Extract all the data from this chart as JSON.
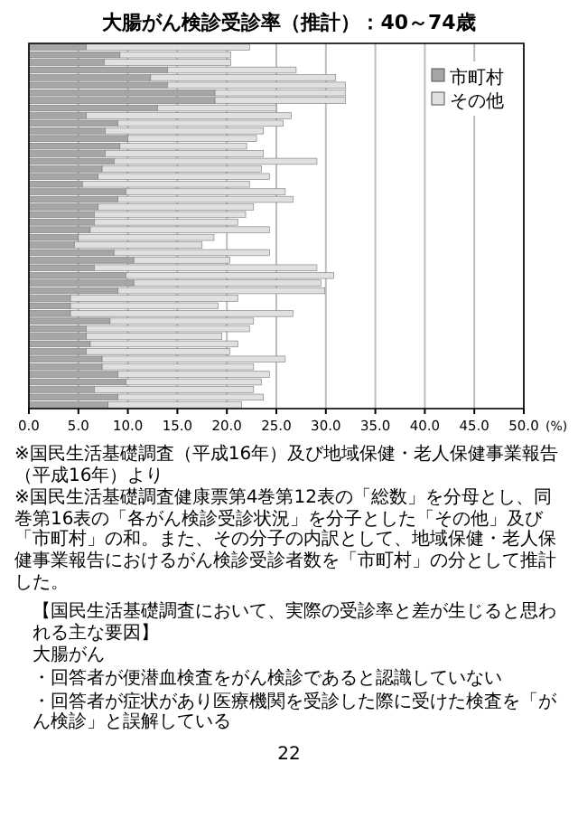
{
  "chart_data": {
    "type": "bar",
    "orientation": "horizontal",
    "stacked": true,
    "title": "大腸がん検診受診率（推計）：40～74歳",
    "xlabel": "(%)",
    "categories": [
      null,
      null,
      null,
      null,
      null,
      null,
      null,
      null,
      null,
      null,
      null,
      null,
      null,
      null,
      null,
      null,
      null,
      null,
      null,
      null,
      null,
      null,
      null,
      null,
      null,
      null,
      null,
      null,
      null,
      null,
      null,
      null,
      null,
      null,
      null,
      null,
      null,
      null,
      null,
      null,
      null,
      null,
      null,
      null,
      null,
      null,
      null,
      null
    ],
    "series": [
      {
        "name": "市町村",
        "color": "#a6a6a6",
        "values": [
          5.8,
          9.2,
          7.6,
          14,
          12.3,
          14,
          18.8,
          18.8,
          13,
          5.8,
          9,
          7.7,
          10,
          9.2,
          7.7,
          8.6,
          7.4,
          7,
          5.4,
          9.8,
          9,
          7,
          6.6,
          6.6,
          6.2,
          5,
          4.6,
          8.6,
          10.6,
          6.6,
          9.8,
          10.6,
          9,
          4.2,
          4.2,
          4.2,
          8.2,
          5.8,
          5.8,
          6.2,
          5.8,
          7.4,
          7.4,
          9,
          9.8,
          6.6,
          9,
          8
        ]
      },
      {
        "name": "その他",
        "color": "#e0e0e0",
        "values": [
          16.5,
          11.2,
          12.8,
          13,
          18.7,
          18,
          13.2,
          13.2,
          12,
          20.7,
          16.7,
          16,
          13,
          12.8,
          16,
          20.5,
          16.1,
          17.3,
          16.9,
          16.1,
          17.7,
          15.7,
          15.3,
          14.5,
          18.1,
          13.7,
          12.9,
          15.7,
          9.7,
          22.5,
          21,
          18.9,
          20.9,
          16.9,
          14.9,
          22.5,
          14.5,
          16.5,
          13.7,
          14.9,
          14.5,
          18.5,
          15.3,
          15.3,
          13.7,
          16.1,
          14.7,
          13.5
        ]
      }
    ],
    "xlim": [
      0,
      50
    ],
    "xticks": [
      {
        "value": 0,
        "label": "0.0"
      },
      {
        "value": 5,
        "label": "5.0"
      },
      {
        "value": 10,
        "label": "10.0"
      },
      {
        "value": 15,
        "label": "15.0"
      },
      {
        "value": 20,
        "label": "20.0"
      },
      {
        "value": 25,
        "label": "25.0"
      },
      {
        "value": 30,
        "label": "30.0"
      },
      {
        "value": 35,
        "label": "35.0"
      },
      {
        "value": 40,
        "label": "40.0"
      },
      {
        "value": 45,
        "label": "45.0"
      },
      {
        "value": 50,
        "label": "50.0"
      }
    ],
    "grid": "x",
    "legend": "top right",
    "annotations": [
      "※国民生活基礎調査（平成16年）及び地域保健・老人保健事業報告（平成16年）より",
      "※国民生活基礎調査健康票第4巻第12表の「総数」を分母とし、同巻第16表の「各がん検診受診状況」を分子とした「その他」及び「市町村」の和。また、その分子の内訳として、地域保健・老人保健事業報告におけるがん検診受診者数を「市町村」の分として推計した。",
      "【国民生活基礎調査において、実際の受診率と差が生じると思われる主な要因】",
      "大腸がん",
      "・回答者が便潜血検査をがん検診であると認識していない",
      "・回答者が症状があり医療機関を受診した際に受けた検査を「がん検診」と誤解している",
      "22"
    ]
  }
}
